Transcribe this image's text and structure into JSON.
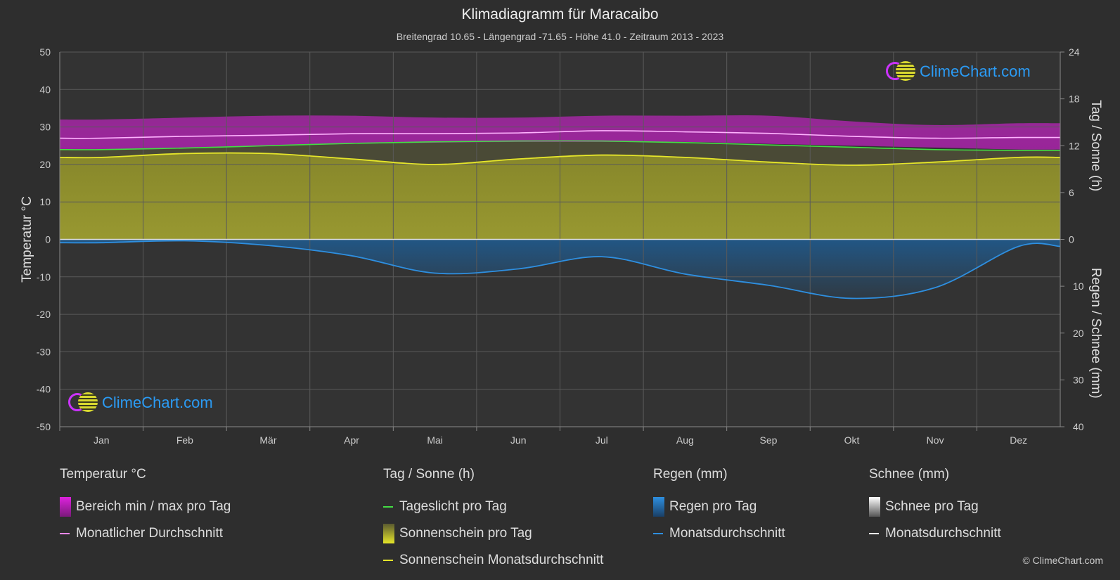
{
  "header": {
    "title": "Klimadiagramm für Maracaibo",
    "subtitle": "Breitengrad 10.65 - Längengrad -71.65 - Höhe 41.0 - Zeitraum 2013 - 2023"
  },
  "logo_text": "ClimeChart.com",
  "copyright": "© ClimeChart.com",
  "chart_data": {
    "type": "area",
    "months": [
      "Jan",
      "Feb",
      "Mär",
      "Apr",
      "Mai",
      "Jun",
      "Jul",
      "Aug",
      "Sep",
      "Okt",
      "Nov",
      "Dez"
    ],
    "axes": {
      "left": {
        "label": "Temperatur °C",
        "range": [
          -50,
          50
        ],
        "ticks": [
          50,
          40,
          30,
          20,
          10,
          0,
          -10,
          -20,
          -30,
          -40,
          -50
        ]
      },
      "right_top": {
        "label": "Tag / Sonne (h)",
        "range": [
          0,
          24
        ],
        "ticks": [
          24,
          18,
          12,
          6,
          0
        ]
      },
      "right_bottom": {
        "label": "Regen / Schnee (mm)",
        "range": [
          0,
          40
        ],
        "ticks": [
          0,
          10,
          20,
          30,
          40
        ]
      }
    },
    "grid": true,
    "series": [
      {
        "name": "Monatlicher Durchschnitt",
        "unit": "°C",
        "color": "#ffb3ff",
        "values": [
          27.0,
          27.5,
          27.8,
          28.2,
          28.2,
          28.4,
          29.0,
          28.7,
          28.3,
          27.5,
          27.0,
          27.2
        ]
      },
      {
        "name": "Bereich min / max pro Tag",
        "unit": "°C",
        "color": "#dd22dd",
        "min": [
          24.0,
          24.5,
          25.0,
          25.5,
          25.8,
          26.0,
          26.0,
          26.0,
          25.5,
          25.0,
          24.5,
          24.0
        ],
        "max": [
          32.0,
          32.5,
          33.0,
          33.0,
          32.5,
          32.5,
          33.0,
          33.0,
          33.0,
          31.5,
          30.5,
          31.0
        ]
      },
      {
        "name": "Tageslicht pro Tag",
        "unit": "h",
        "color": "#44dd44",
        "values": [
          11.5,
          11.7,
          12.0,
          12.3,
          12.5,
          12.6,
          12.6,
          12.4,
          12.1,
          11.8,
          11.5,
          11.4
        ]
      },
      {
        "name": "Sonnenschein Monatsdurchschnitt",
        "unit": "h",
        "color": "#e5e52a",
        "values": [
          10.5,
          11.0,
          11.0,
          10.3,
          9.6,
          10.3,
          10.8,
          10.5,
          9.9,
          9.5,
          9.9,
          10.5
        ]
      },
      {
        "name": "Regen Monatsdurchschnitt",
        "unit": "mm",
        "color": "#2e8fe0",
        "values": [
          0.7,
          0.3,
          1.3,
          3.5,
          7.2,
          6.3,
          3.7,
          7.4,
          9.8,
          12.6,
          10.3,
          1.5
        ]
      }
    ]
  },
  "legend": {
    "temperature": {
      "heading": "Temperatur °C",
      "items": [
        {
          "label": "Bereich min / max pro Tag",
          "color": "#dd22dd"
        },
        {
          "label": "Monatlicher Durchschnitt",
          "color": "#ff88ff"
        }
      ]
    },
    "sun": {
      "heading": "Tag / Sonne (h)",
      "items": [
        {
          "label": "Tageslicht pro Tag",
          "color": "#44dd44"
        },
        {
          "label": "Sonnenschein pro Tag",
          "color": "#cfcf30"
        },
        {
          "label": "Sonnenschein Monatsdurchschnitt",
          "color": "#e5e52a"
        }
      ]
    },
    "rain": {
      "heading": "Regen (mm)",
      "items": [
        {
          "label": "Regen pro Tag",
          "color": "#2e8fe0"
        },
        {
          "label": "Monatsdurchschnitt",
          "color": "#2e8fe0"
        }
      ]
    },
    "snow": {
      "heading": "Schnee (mm)",
      "items": [
        {
          "label": "Schnee pro Tag",
          "color": "#dddddd"
        },
        {
          "label": "Monatsdurchschnitt",
          "color": "#ffffff"
        }
      ]
    }
  }
}
